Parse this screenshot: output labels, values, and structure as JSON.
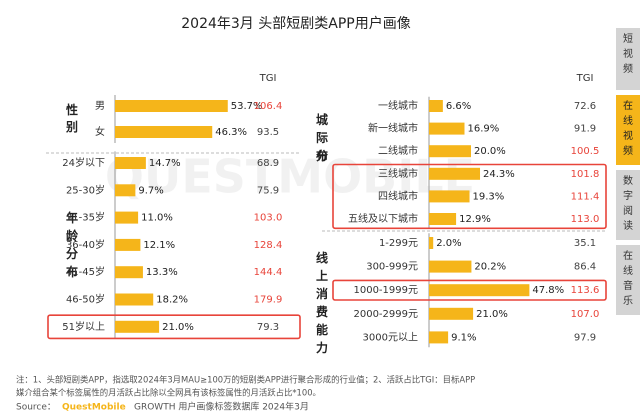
{
  "title": "2024年3月 头部短剧类APP用户画像",
  "tgi_header": "TGI",
  "colors": {
    "bar": "#f5b51a",
    "tgi_high": "#e8443a",
    "tgi_normal": "#444444",
    "highlight_border": "#e8443a",
    "tab_inactive": "#d4d4d4",
    "tab_active": "#f5b51a",
    "divider": "#bbbbbb"
  },
  "chart_data": [
    {
      "type": "bar",
      "panel": "gender",
      "group_label": "性别",
      "categories": [
        "男",
        "女"
      ],
      "values": [
        53.7,
        46.3
      ],
      "value_labels": [
        "53.7%",
        "46.3%"
      ],
      "tgi": [
        "106.4",
        "93.5"
      ],
      "tgi_high": [
        true,
        false
      ],
      "highlighted": [
        false,
        false
      ]
    },
    {
      "type": "bar",
      "panel": "age",
      "group_label": "年龄分布",
      "categories": [
        "24岁以下",
        "25-30岁",
        "31-35岁",
        "36-40岁",
        "41-45岁",
        "46-50岁",
        "51岁以上"
      ],
      "values": [
        14.7,
        9.7,
        11.0,
        12.1,
        13.3,
        18.2,
        21.0
      ],
      "value_labels": [
        "14.7%",
        "9.7%",
        "11.0%",
        "12.1%",
        "13.3%",
        "18.2%",
        "21.0%"
      ],
      "tgi": [
        "68.9",
        "75.9",
        "103.0",
        "128.4",
        "144.4",
        "179.9",
        "79.3"
      ],
      "tgi_high": [
        false,
        false,
        true,
        true,
        true,
        true,
        false
      ],
      "highlighted": [
        false,
        false,
        false,
        false,
        false,
        false,
        true
      ]
    },
    {
      "type": "bar",
      "panel": "city",
      "group_label": "城际分布",
      "categories": [
        "一线城市",
        "新一线城市",
        "二线城市",
        "三线城市",
        "四线城市",
        "五线及以下城市"
      ],
      "values": [
        6.6,
        16.9,
        20.0,
        24.3,
        19.3,
        12.9
      ],
      "value_labels": [
        "6.6%",
        "16.9%",
        "20.0%",
        "24.3%",
        "19.3%",
        "12.9%"
      ],
      "tgi": [
        "72.6",
        "91.9",
        "100.5",
        "101.8",
        "111.4",
        "113.0"
      ],
      "tgi_high": [
        false,
        false,
        true,
        true,
        true,
        true
      ],
      "highlighted": [
        false,
        false,
        false,
        true,
        true,
        true
      ]
    },
    {
      "type": "bar",
      "panel": "consumption",
      "group_label": "线上消费能力",
      "categories": [
        "1-299元",
        "300-999元",
        "1000-1999元",
        "2000-2999元",
        "3000元以上"
      ],
      "values": [
        2.0,
        20.2,
        47.8,
        21.0,
        9.1
      ],
      "value_labels": [
        "2.0%",
        "20.2%",
        "47.8%",
        "21.0%",
        "9.1%"
      ],
      "tgi": [
        "35.1",
        "86.4",
        "113.6",
        "107.0",
        "97.9"
      ],
      "tgi_high": [
        false,
        false,
        true,
        true,
        false
      ],
      "highlighted": [
        false,
        false,
        true,
        false,
        false
      ]
    }
  ],
  "notes": {
    "line1": "注：1、头部短剧类APP，指选取2024年3月MAU≥100万的短剧类APP进行聚合形成的行业值；2、活跃占比TGI：目标APP",
    "line2": "媒介组合某个标签属性的月活跃占比除以全网具有该标签属性的月活跃占比*100。",
    "source_prefix": "Source：",
    "source_brand": "QuestMobile",
    "source_rest": " GROWTH 用户画像标签数据库 2024年3月"
  },
  "watermark": "QUESTMOBILE",
  "tabs": [
    {
      "label": "短视频",
      "active": false
    },
    {
      "label": "在线视频",
      "active": true
    },
    {
      "label": "数字阅读",
      "active": false
    },
    {
      "label": "在线音乐",
      "active": false
    }
  ]
}
